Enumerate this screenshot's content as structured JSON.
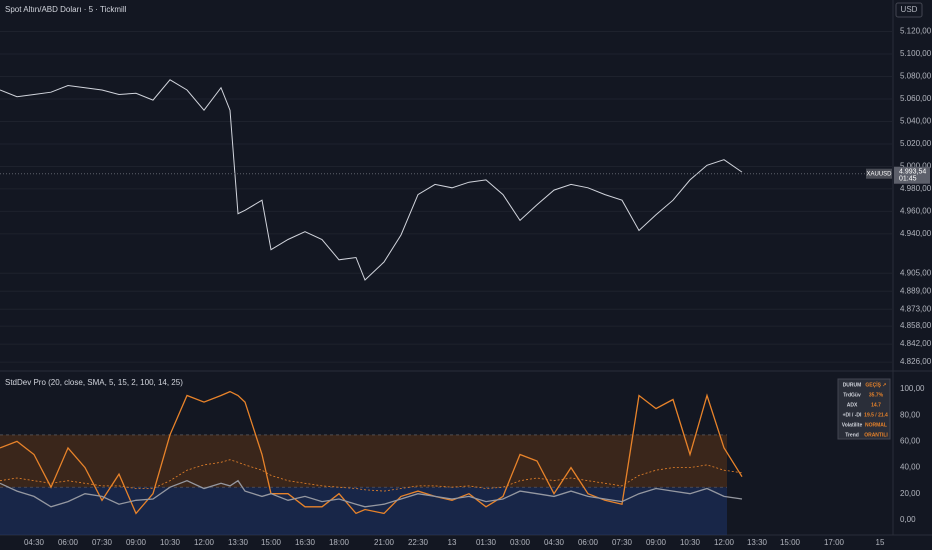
{
  "header": {
    "symbol_title": "Spot Altın/ABD Doları · 5 · Tickmill",
    "currency_button": "USD"
  },
  "chart_data": [
    {
      "type": "line",
      "color": "#d1d4dc",
      "values": [
        5068,
        5062,
        5064,
        5066,
        5072,
        5070,
        5068,
        5064,
        5065,
        5059,
        5077,
        5068,
        5050,
        5070,
        5050,
        4958,
        4961,
        4970,
        4926,
        4935,
        4942,
        4935,
        4917,
        4919,
        4899,
        4915,
        4939,
        4975,
        4984,
        4981,
        4986,
        4988,
        4975,
        4952,
        4966,
        4979,
        4984,
        4981,
        4975,
        4970,
        4943,
        4957,
        4970,
        4988,
        5001,
        5006,
        4995,
        null,
        null,
        null,
        null
      ],
      "ylim": [
        4819,
        5148
      ],
      "yticks": [
        {
          "value": 5120,
          "label": "5.120,00"
        },
        {
          "value": 5100,
          "label": "5.100,00"
        },
        {
          "value": 5080,
          "label": "5.080,00"
        },
        {
          "value": 5060,
          "label": "5.060,00"
        },
        {
          "value": 5040,
          "label": "5.040,00"
        },
        {
          "value": 5020,
          "label": "5.020,00"
        },
        {
          "value": 5000,
          "label": "5.000,00"
        },
        {
          "value": 4980,
          "label": "4.980,00"
        },
        {
          "value": 4960,
          "label": "4.960,00"
        },
        {
          "value": 4940,
          "label": "4.940,00"
        },
        {
          "value": 4905,
          "label": "4.905,00"
        },
        {
          "value": 4889,
          "label": "4.889,00"
        },
        {
          "value": 4873,
          "label": "4.873,00"
        },
        {
          "value": 4858,
          "label": "4.858,00"
        },
        {
          "value": 4842,
          "label": "4.842,00"
        },
        {
          "value": 4826,
          "label": "4.826,00"
        }
      ],
      "last_price": {
        "value": 4993.54,
        "symbol": "XAUUSD",
        "label": "4.993,54",
        "countdown": "01:45"
      },
      "grid": true
    },
    {
      "type": "line",
      "title": "StdDev Pro (20, close, SMA, 5, 15, 2, 100, 14, 25)",
      "categories": [
        null,
        null,
        "04:30",
        null,
        "06:00",
        null,
        "07:30",
        null,
        "09:00",
        null,
        "10:30",
        null,
        "12:00",
        null,
        null,
        "13:30",
        null,
        null,
        "15:00",
        null,
        "16:30",
        null,
        "18:00",
        null,
        null,
        "21:00",
        null,
        "22:30",
        null,
        "13",
        null,
        "01:30",
        null,
        "03:00",
        null,
        "04:30",
        null,
        "06:00",
        null,
        "07:30",
        null,
        "09:00",
        null,
        "10:30",
        null,
        "12:00",
        null,
        "13:30",
        "15:00",
        "17:00",
        "15"
      ],
      "series": [
        {
          "color": "#e8832a",
          "values": [
            55,
            60,
            50,
            25,
            55,
            40,
            15,
            35,
            5,
            20,
            65,
            95,
            90,
            95,
            98,
            95,
            90,
            50,
            20,
            20,
            10,
            10,
            20,
            5,
            8,
            5,
            18,
            22,
            18,
            15,
            20,
            10,
            18,
            50,
            45,
            20,
            40,
            20,
            15,
            12,
            95,
            85,
            92,
            50,
            95,
            55,
            33,
            null,
            null,
            null,
            null
          ]
        },
        {
          "color": "#9598a1",
          "values": [
            28,
            22,
            18,
            10,
            14,
            20,
            18,
            12,
            15,
            16,
            25,
            30,
            24,
            28,
            26,
            30,
            22,
            18,
            20,
            15,
            18,
            14,
            16,
            12,
            10,
            12,
            16,
            20,
            18,
            16,
            18,
            14,
            16,
            22,
            20,
            18,
            22,
            18,
            16,
            14,
            20,
            24,
            22,
            20,
            24,
            18,
            16,
            null,
            null,
            null,
            null
          ]
        },
        {
          "color": "#e8832a",
          "dashed": true,
          "values": [
            30,
            32,
            30,
            28,
            30,
            28,
            26,
            26,
            24,
            24,
            30,
            38,
            42,
            44,
            46,
            44,
            42,
            38,
            34,
            30,
            28,
            26,
            25,
            24,
            23,
            22,
            24,
            26,
            26,
            25,
            26,
            24,
            25,
            30,
            32,
            30,
            32,
            30,
            28,
            26,
            34,
            38,
            40,
            40,
            42,
            38,
            36,
            null,
            null,
            null,
            null
          ]
        }
      ],
      "bands": [
        {
          "from": -11.5,
          "to": 25,
          "color": "#1e3a78"
        },
        {
          "from": 25,
          "to": 65,
          "color": "#6b3a14"
        }
      ],
      "ylim": [
        -11.5,
        112.2
      ],
      "yticks": [
        {
          "value": 0,
          "label": "0,00"
        },
        {
          "value": 20,
          "label": "20,00"
        },
        {
          "value": 40,
          "label": "40,00"
        },
        {
          "value": 60,
          "label": "60,00"
        },
        {
          "value": 80,
          "label": "80,00"
        },
        {
          "value": 100,
          "label": "100,00"
        }
      ]
    }
  ],
  "info_table": {
    "rows": [
      [
        "DURUM",
        "GEÇİŞ ↗"
      ],
      [
        "TrdGüv",
        "35.7%"
      ],
      [
        "ADX",
        "14.7"
      ],
      [
        "+DI / -DI",
        "19.5 / 21.4"
      ],
      [
        "Volatilite",
        "NORMAL"
      ],
      [
        "Trend",
        "ORANTILI"
      ]
    ]
  }
}
